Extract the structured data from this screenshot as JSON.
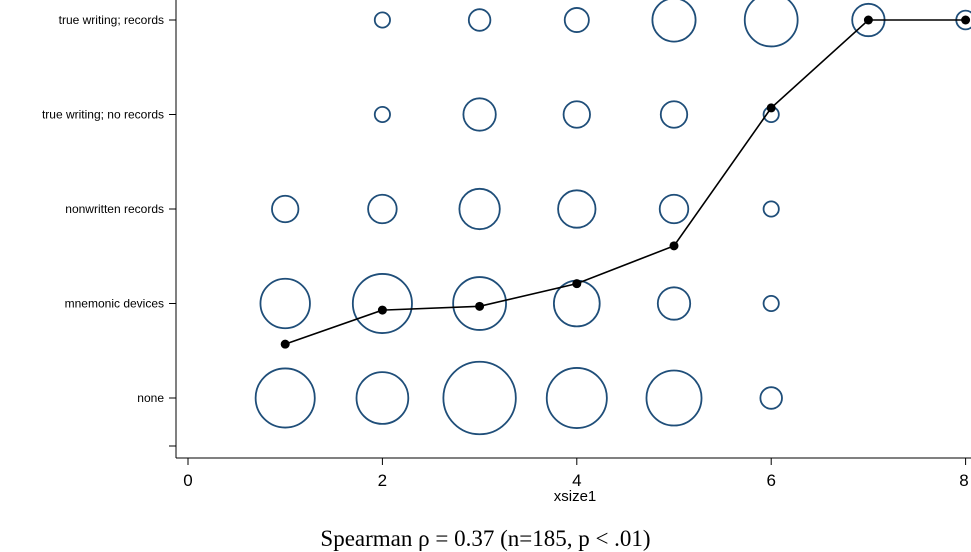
{
  "chart_data": {
    "type": "scatter",
    "xlabel": "xsize1",
    "ylabel": "",
    "xlim": [
      0,
      8
    ],
    "x_ticks": [
      0,
      2,
      4,
      6,
      8
    ],
    "y_categories": [
      "none",
      "mnemonic devices",
      "nonwritten records",
      "true writing; no records",
      "true writing; records"
    ],
    "grid": false,
    "bubble_color": "#1f4e79",
    "line_color": "#000000",
    "bubbles": [
      {
        "x": 1,
        "y": 0,
        "size": 30
      },
      {
        "x": 2,
        "y": 0,
        "size": 23
      },
      {
        "x": 3,
        "y": 0,
        "size": 45
      },
      {
        "x": 4,
        "y": 0,
        "size": 31
      },
      {
        "x": 5,
        "y": 0,
        "size": 26
      },
      {
        "x": 6,
        "y": 0,
        "size": 4
      },
      {
        "x": 1,
        "y": 1,
        "size": 21
      },
      {
        "x": 2,
        "y": 1,
        "size": 30
      },
      {
        "x": 3,
        "y": 1,
        "size": 24
      },
      {
        "x": 4,
        "y": 1,
        "size": 18
      },
      {
        "x": 5,
        "y": 1,
        "size": 9
      },
      {
        "x": 6,
        "y": 1,
        "size": 2
      },
      {
        "x": 1,
        "y": 2,
        "size": 6
      },
      {
        "x": 2,
        "y": 2,
        "size": 7
      },
      {
        "x": 3,
        "y": 2,
        "size": 14
      },
      {
        "x": 4,
        "y": 2,
        "size": 12
      },
      {
        "x": 5,
        "y": 2,
        "size": 7
      },
      {
        "x": 6,
        "y": 2,
        "size": 2
      },
      {
        "x": 2,
        "y": 3,
        "size": 2
      },
      {
        "x": 3,
        "y": 3,
        "size": 9
      },
      {
        "x": 4,
        "y": 3,
        "size": 6
      },
      {
        "x": 5,
        "y": 3,
        "size": 6
      },
      {
        "x": 6,
        "y": 3,
        "size": 2
      },
      {
        "x": 2,
        "y": 4,
        "size": 2
      },
      {
        "x": 3,
        "y": 4,
        "size": 4
      },
      {
        "x": 4,
        "y": 4,
        "size": 5
      },
      {
        "x": 5,
        "y": 4,
        "size": 16
      },
      {
        "x": 6,
        "y": 4,
        "size": 24
      },
      {
        "x": 7,
        "y": 4,
        "size": 9
      },
      {
        "x": 8,
        "y": 4,
        "size": 3
      }
    ],
    "mean_line": {
      "x": [
        1,
        2,
        3,
        4,
        5,
        6,
        7,
        8
      ],
      "y": [
        0.57,
        0.93,
        0.97,
        1.21,
        1.61,
        3.07,
        4.0,
        4.0
      ]
    }
  },
  "caption": "Spearman ρ = 0.37 (n=185, p < .01)"
}
